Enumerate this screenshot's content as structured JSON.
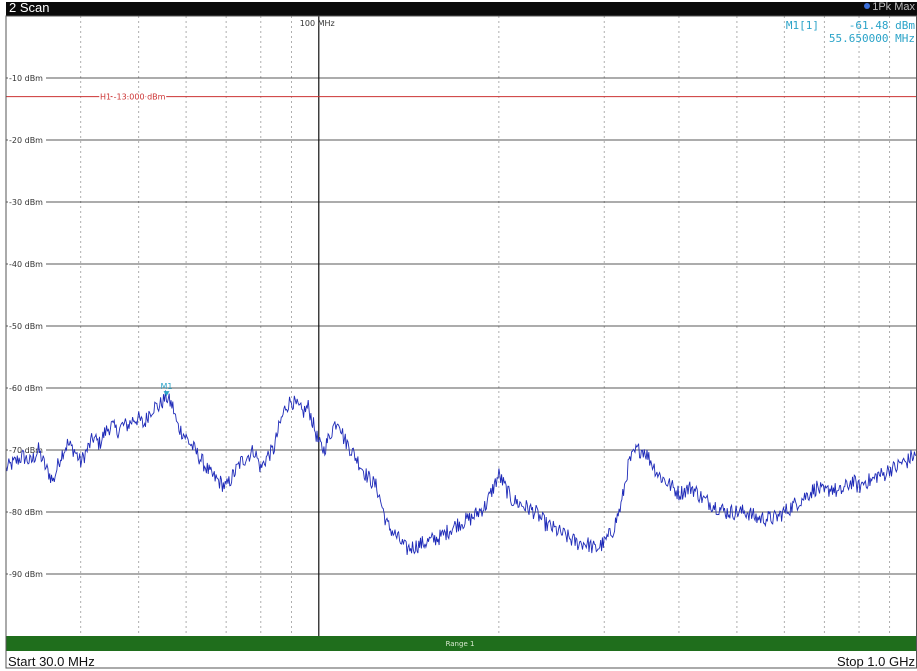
{
  "window": {
    "title": "2 Scan",
    "trace_label": "1Pk Max"
  },
  "marker_info": {
    "name": "M1[1]",
    "level": "-61.48 dBm",
    "frequency": "55.650000 MHz"
  },
  "footer": {
    "start": "Start 30.0 MHz",
    "stop": "Stop 1.0 GHz"
  },
  "chart_data": {
    "type": "line",
    "x_scale": "log",
    "x_unit": "MHz",
    "xlim": [
      30,
      1000
    ],
    "ylim": [
      -100,
      0
    ],
    "y_ticks": [
      -10,
      -20,
      -30,
      -40,
      -50,
      -60,
      -70,
      -80,
      -90
    ],
    "y_tick_labels": [
      "-10 dBm",
      "-20 dBm",
      "-30 dBm",
      "-40 dBm",
      "-50 dBm",
      "-60 dBm",
      "-70 dBm",
      "-80 dBm",
      "-90 dBm"
    ],
    "x_grid_MHz": [
      40,
      50,
      60,
      70,
      80,
      90,
      100,
      200,
      300,
      400,
      500,
      600,
      700,
      800,
      900
    ],
    "ref_line": {
      "freq": 100,
      "label": "100 MHz"
    },
    "limit_line": {
      "level": -13,
      "label": "H1 -13.000 dBm",
      "color": "#cc3333"
    },
    "range_bar": {
      "label": "Range 1",
      "color": "#1f6e1c"
    },
    "marker": {
      "label": "M1",
      "freq": 55.65,
      "level": -61.48
    },
    "trace_color": "#1f2bb8",
    "series": [
      {
        "points": [
          [
            30,
            -73
          ],
          [
            31,
            -72
          ],
          [
            32,
            -71
          ],
          [
            33,
            -72
          ],
          [
            34,
            -70
          ],
          [
            35,
            -73
          ],
          [
            36,
            -75
          ],
          [
            37,
            -71
          ],
          [
            38,
            -69
          ],
          [
            39,
            -70
          ],
          [
            40,
            -72
          ],
          [
            41,
            -70
          ],
          [
            42,
            -68
          ],
          [
            43,
            -69
          ],
          [
            44,
            -67
          ],
          [
            45,
            -66
          ],
          [
            46,
            -67
          ],
          [
            47,
            -66
          ],
          [
            48,
            -66
          ],
          [
            49,
            -65
          ],
          [
            50,
            -65
          ],
          [
            51,
            -66
          ],
          [
            52,
            -64
          ],
          [
            53,
            -63
          ],
          [
            54,
            -63
          ],
          [
            55,
            -62
          ],
          [
            55.65,
            -61.48
          ],
          [
            57,
            -63
          ],
          [
            58,
            -66
          ],
          [
            60,
            -68
          ],
          [
            62,
            -70
          ],
          [
            64,
            -72
          ],
          [
            66,
            -74
          ],
          [
            68,
            -75
          ],
          [
            70,
            -76
          ],
          [
            72,
            -74
          ],
          [
            74,
            -72
          ],
          [
            76,
            -71
          ],
          [
            78,
            -70
          ],
          [
            80,
            -73
          ],
          [
            82,
            -71
          ],
          [
            84,
            -70
          ],
          [
            86,
            -66
          ],
          [
            88,
            -63
          ],
          [
            90,
            -62
          ],
          [
            92,
            -63
          ],
          [
            94,
            -64
          ],
          [
            96,
            -63
          ],
          [
            98,
            -66
          ],
          [
            100,
            -69
          ],
          [
            102,
            -70
          ],
          [
            104,
            -68
          ],
          [
            106,
            -66
          ],
          [
            108,
            -65
          ],
          [
            110,
            -68
          ],
          [
            115,
            -71
          ],
          [
            120,
            -74
          ],
          [
            125,
            -76
          ],
          [
            130,
            -82
          ],
          [
            135,
            -84
          ],
          [
            140,
            -86
          ],
          [
            150,
            -85
          ],
          [
            160,
            -84
          ],
          [
            170,
            -82
          ],
          [
            180,
            -81
          ],
          [
            190,
            -79
          ],
          [
            200,
            -74
          ],
          [
            210,
            -78
          ],
          [
            220,
            -79
          ],
          [
            230,
            -80
          ],
          [
            240,
            -82
          ],
          [
            250,
            -83
          ],
          [
            260,
            -84
          ],
          [
            270,
            -85
          ],
          [
            280,
            -85
          ],
          [
            290,
            -86
          ],
          [
            300,
            -85
          ],
          [
            310,
            -83
          ],
          [
            320,
            -79
          ],
          [
            330,
            -72
          ],
          [
            340,
            -70
          ],
          [
            350,
            -70
          ],
          [
            360,
            -72
          ],
          [
            370,
            -74
          ],
          [
            380,
            -75
          ],
          [
            390,
            -76
          ],
          [
            400,
            -77
          ],
          [
            420,
            -76
          ],
          [
            440,
            -78
          ],
          [
            460,
            -79
          ],
          [
            480,
            -80
          ],
          [
            500,
            -80
          ],
          [
            520,
            -80
          ],
          [
            540,
            -81
          ],
          [
            560,
            -81
          ],
          [
            580,
            -81
          ],
          [
            600,
            -80
          ],
          [
            620,
            -79
          ],
          [
            640,
            -78
          ],
          [
            660,
            -77
          ],
          [
            680,
            -76
          ],
          [
            700,
            -77
          ],
          [
            720,
            -76
          ],
          [
            740,
            -77
          ],
          [
            760,
            -76
          ],
          [
            780,
            -75
          ],
          [
            800,
            -76
          ],
          [
            820,
            -75
          ],
          [
            840,
            -75
          ],
          [
            860,
            -74
          ],
          [
            880,
            -74
          ],
          [
            900,
            -73
          ],
          [
            920,
            -73
          ],
          [
            940,
            -72
          ],
          [
            960,
            -72
          ],
          [
            980,
            -71
          ],
          [
            1000,
            -71
          ]
        ]
      }
    ]
  }
}
